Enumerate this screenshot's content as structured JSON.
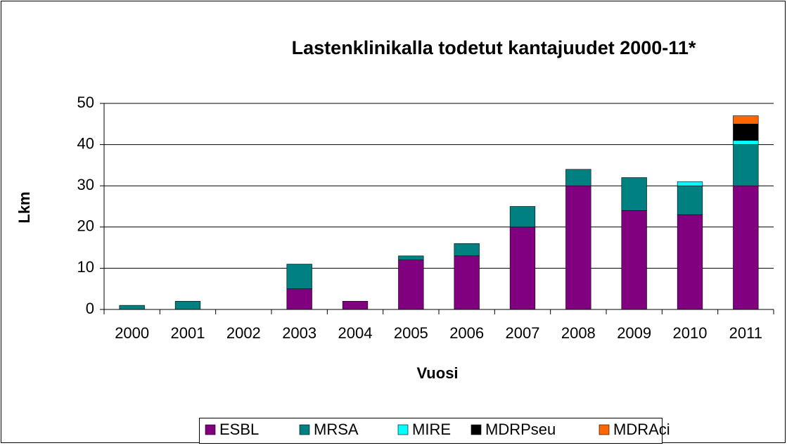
{
  "chart_data": {
    "type": "stacked_bar",
    "title": "Lastenklinikalla todetut kantajuudet 2000-11*",
    "x_label": "Vuosi",
    "y_label": "Lkm",
    "categories": [
      "2000",
      "2001",
      "2002",
      "2003",
      "2004",
      "2005",
      "2006",
      "2007",
      "2008",
      "2009",
      "2010",
      "2011"
    ],
    "series": [
      {
        "name": "ESBL",
        "color": "#800080",
        "values": [
          0,
          0,
          0,
          5,
          2,
          12,
          13,
          20,
          30,
          24,
          23,
          30
        ]
      },
      {
        "name": "MRSA",
        "color": "#008080",
        "values": [
          1,
          2,
          0,
          6,
          0,
          1,
          3,
          5,
          4,
          8,
          7,
          10
        ]
      },
      {
        "name": "MIRE",
        "color": "#00ffff",
        "values": [
          0,
          0,
          0,
          0,
          0,
          0,
          0,
          0,
          0,
          0,
          1,
          1
        ]
      },
      {
        "name": "MDRPseu",
        "color": "#000000",
        "values": [
          0,
          0,
          0,
          0,
          0,
          0,
          0,
          0,
          0,
          0,
          0,
          4
        ]
      },
      {
        "name": "MDRAci",
        "color": "#ff6600",
        "values": [
          0,
          0,
          0,
          0,
          0,
          0,
          0,
          0,
          0,
          0,
          0,
          2
        ]
      }
    ],
    "ylim": [
      0,
      50
    ],
    "yticks": [
      0,
      10,
      20,
      30,
      40,
      50
    ],
    "grid": true,
    "legend": "bottom"
  }
}
